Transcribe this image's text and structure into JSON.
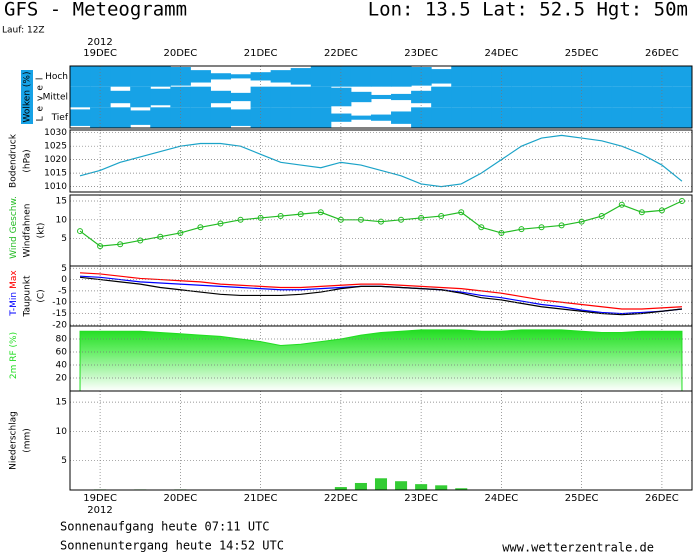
{
  "header": {
    "title": "GFS  -  Meteogramm",
    "location": "Lon: 13.5  Lat: 52.5  Hgt: 50m",
    "run": "Lauf: 12Z"
  },
  "time": {
    "xlim": [
      -9,
      177
    ],
    "x": [
      -6,
      0,
      6,
      12,
      18,
      24,
      30,
      36,
      42,
      48,
      54,
      60,
      66,
      72,
      78,
      84,
      90,
      96,
      102,
      108,
      114,
      120,
      126,
      132,
      138,
      144,
      150,
      156,
      162,
      168,
      174
    ],
    "xticks": [
      {
        "value": 0,
        "label": "19DEC"
      },
      {
        "value": 24,
        "label": "20DEC"
      },
      {
        "value": 48,
        "label": "21DEC"
      },
      {
        "value": 72,
        "label": "22DEC"
      },
      {
        "value": 96,
        "label": "23DEC"
      },
      {
        "value": 120,
        "label": "24DEC"
      },
      {
        "value": 144,
        "label": "25DEC"
      },
      {
        "value": 168,
        "label": "26DEC"
      }
    ],
    "year": "2012"
  },
  "chart_data": [
    {
      "type": "cloud",
      "ylabel": [
        "Wolken (%)"
      ],
      "level_label": "Level",
      "ylim": [
        0,
        100
      ],
      "series": [
        {
          "name": "Hoch",
          "color": "#17a2e6",
          "values": [
            100,
            100,
            100,
            100,
            100,
            90,
            60,
            30,
            20,
            40,
            60,
            80,
            100,
            100,
            100,
            100,
            100,
            90,
            70,
            100,
            100,
            100,
            100,
            100,
            100,
            100,
            100,
            100,
            100,
            100,
            100
          ]
        },
        {
          "name": "Mittel",
          "color": "#17a2e6",
          "values": [
            100,
            100,
            60,
            100,
            80,
            100,
            100,
            60,
            40,
            100,
            100,
            100,
            100,
            90,
            50,
            20,
            30,
            60,
            100,
            100,
            100,
            100,
            100,
            100,
            100,
            100,
            100,
            100,
            100,
            100,
            100
          ]
        },
        {
          "name": "Tief",
          "color": "#17a2e6",
          "values": [
            80,
            100,
            100,
            70,
            100,
            100,
            100,
            100,
            80,
            100,
            100,
            100,
            100,
            40,
            20,
            30,
            60,
            100,
            100,
            100,
            100,
            100,
            100,
            100,
            100,
            100,
            100,
            100,
            100,
            100,
            100
          ]
        }
      ]
    },
    {
      "type": "line",
      "ylabel": [
        "Bodendruck",
        "(hPa)"
      ],
      "ylim": [
        1008,
        1031
      ],
      "yticks": [
        1010,
        1015,
        1020,
        1025,
        1030
      ],
      "series": [
        {
          "name": "Bodendruck",
          "color": "#1ba3c8",
          "values": [
            1014,
            1016,
            1019,
            1021,
            1023,
            1025,
            1026,
            1026,
            1025,
            1022,
            1019,
            1018,
            1017,
            1019,
            1018,
            1016,
            1014,
            1011,
            1010,
            1011,
            1015,
            1020,
            1025,
            1028,
            1029,
            1028,
            1027,
            1025,
            1022,
            1018,
            1012
          ]
        }
      ]
    },
    {
      "type": "line",
      "legend": true,
      "markers": true,
      "ylabel": [
        "Windfahnen",
        "(kt)"
      ],
      "ylim": [
        -2.3,
        16.6
      ],
      "yticks": [
        5,
        10,
        15
      ],
      "series": [
        {
          "name": "Wind Geschw.",
          "color": "#22bb22",
          "values": [
            7,
            3,
            3.5,
            4.5,
            5.5,
            6.5,
            8,
            9,
            10,
            10.5,
            11,
            11.5,
            12,
            10,
            10,
            9.5,
            10,
            10.5,
            11,
            12,
            8,
            6.5,
            7.5,
            8,
            8.5,
            9.5,
            11,
            14,
            12,
            12.5,
            15
          ]
        }
      ]
    },
    {
      "type": "line",
      "legend": true,
      "ylabel": [
        "Taupunkt",
        "(C)"
      ],
      "ylim": [
        -20.5,
        6
      ],
      "yticks": [
        5,
        0,
        -5,
        -10,
        -15,
        -20
      ],
      "series": [
        {
          "name": "T-Min",
          "color": "#0000ff",
          "values": [
            1.5,
            1,
            0,
            -1,
            -1.5,
            -2,
            -2.5,
            -3,
            -3.5,
            -4,
            -4.5,
            -4.5,
            -4,
            -3.5,
            -3,
            -3,
            -3.5,
            -4,
            -4.5,
            -5.5,
            -7,
            -8,
            -9.5,
            -11,
            -12,
            -13.5,
            -14.5,
            -15,
            -14.5,
            -14,
            -13
          ]
        },
        {
          "name": "Max",
          "color": "#ff0000",
          "values": [
            3,
            2.5,
            1.5,
            0.5,
            0,
            -0.5,
            -1,
            -2,
            -2.5,
            -3,
            -3.5,
            -3.5,
            -3,
            -2.5,
            -2,
            -2,
            -2.5,
            -3,
            -3.5,
            -4,
            -5,
            -6,
            -7.5,
            -9,
            -10,
            -11,
            -12,
            -13,
            -13,
            -12.5,
            -12
          ]
        },
        {
          "name": "Taupunkt",
          "color": "#000000",
          "values": [
            1,
            0,
            -1,
            -2,
            -3.5,
            -4.5,
            -5.5,
            -6.5,
            -7,
            -7,
            -7,
            -6.5,
            -5.5,
            -4,
            -3,
            -3,
            -3.5,
            -4,
            -4.5,
            -6,
            -8,
            -9,
            -10.5,
            -12,
            -13,
            -14,
            -15,
            -15.5,
            -15,
            -14,
            -13
          ]
        }
      ]
    },
    {
      "type": "area",
      "legend": true,
      "ylabel": [],
      "ylim": [
        0,
        100
      ],
      "yticks": [
        20,
        40,
        60,
        80
      ],
      "series": [
        {
          "name": "2m RF (%)",
          "color": "#22dd22",
          "values": [
            92,
            92,
            92,
            92,
            90,
            88,
            86,
            84,
            80,
            76,
            70,
            72,
            76,
            80,
            86,
            90,
            92,
            94,
            94,
            94,
            92,
            92,
            94,
            94,
            94,
            92,
            90,
            90,
            92,
            92,
            92
          ]
        }
      ]
    },
    {
      "type": "bar",
      "ylabel": [
        "Niederschlag",
        "(mm)"
      ],
      "ylim": [
        0,
        16.9
      ],
      "yticks": [
        5,
        10,
        15
      ],
      "series": [
        {
          "name": "Niederschlag",
          "color": "#33cc33",
          "values": [
            0,
            0.1,
            0,
            0.1,
            0,
            0.1,
            0,
            0,
            0,
            0,
            0,
            0,
            0,
            0.5,
            1.2,
            2,
            1.5,
            1,
            0.8,
            0.3,
            0,
            0,
            0,
            0,
            0,
            0,
            0,
            0,
            0,
            0,
            0
          ]
        }
      ]
    }
  ],
  "footer": {
    "sunrise": "Sonnenaufgang heute 07:11 UTC",
    "sunset": "Sonnenuntergang heute 14:52 UTC",
    "source": "www.wetterzentrale.de"
  }
}
